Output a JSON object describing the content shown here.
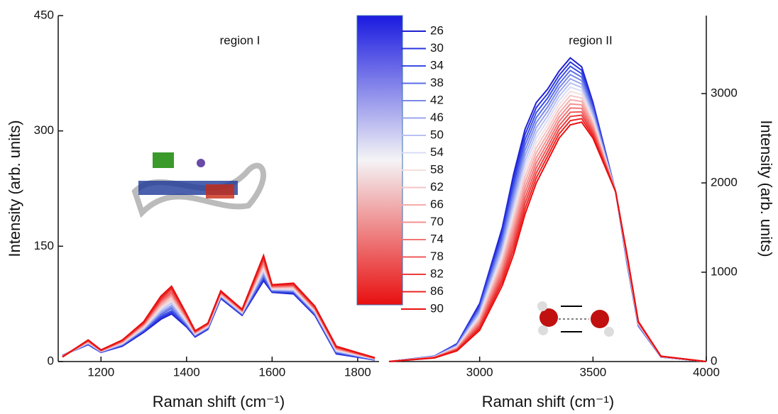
{
  "chart_data": [
    {
      "type": "line",
      "annotation": "region I",
      "x_label": "Raman shift (cm⁻¹)",
      "y_label": "Intensity (arb. units)",
      "xlim": [
        1100,
        1850
      ],
      "xticks": [
        1200,
        1400,
        1600,
        1800
      ],
      "ylim": [
        0,
        450
      ],
      "yticks": [
        0,
        150,
        300,
        450
      ],
      "x": [
        1110,
        1170,
        1200,
        1250,
        1300,
        1340,
        1365,
        1400,
        1420,
        1450,
        1480,
        1530,
        1580,
        1600,
        1650,
        1700,
        1750,
        1840
      ],
      "series": [
        {
          "name": "26",
          "color": "#1f1fd0",
          "values": [
            8,
            22,
            12,
            20,
            38,
            55,
            62,
            45,
            32,
            42,
            82,
            60,
            105,
            90,
            88,
            60,
            10,
            2
          ]
        },
        {
          "name": "30",
          "color": "#2a36e0",
          "values": [
            8,
            22,
            12,
            21,
            39,
            57,
            64,
            46,
            33,
            43,
            83,
            61,
            107,
            91,
            89,
            61,
            11,
            2
          ]
        },
        {
          "name": "34",
          "color": "#3a4ee6",
          "values": [
            8,
            23,
            12,
            21,
            40,
            59,
            66,
            47,
            33,
            43,
            83,
            61,
            109,
            91,
            90,
            62,
            11,
            2
          ]
        },
        {
          "name": "38",
          "color": "#5a6ce8",
          "values": [
            8,
            23,
            13,
            22,
            41,
            61,
            69,
            48,
            34,
            44,
            84,
            62,
            111,
            92,
            91,
            62,
            12,
            3
          ]
        },
        {
          "name": "42",
          "color": "#7a88e8",
          "values": [
            8,
            24,
            13,
            22,
            42,
            63,
            71,
            49,
            34,
            44,
            85,
            62,
            113,
            93,
            92,
            63,
            13,
            3
          ]
        },
        {
          "name": "46",
          "color": "#9aa4ee",
          "values": [
            7,
            24,
            13,
            23,
            42,
            64,
            73,
            50,
            35,
            45,
            85,
            63,
            115,
            93,
            92,
            64,
            13,
            3
          ]
        },
        {
          "name": "50",
          "color": "#b9c0f2",
          "values": [
            7,
            24,
            13,
            23,
            43,
            66,
            76,
            51,
            35,
            45,
            86,
            63,
            117,
            94,
            93,
            65,
            14,
            3
          ]
        },
        {
          "name": "54",
          "color": "#d8dcf5",
          "values": [
            7,
            25,
            13,
            24,
            44,
            68,
            78,
            52,
            36,
            46,
            86,
            64,
            119,
            94,
            94,
            65,
            14,
            3
          ]
        },
        {
          "name": "58",
          "color": "#f5dede",
          "values": [
            7,
            25,
            14,
            24,
            45,
            70,
            80,
            54,
            36,
            46,
            87,
            64,
            122,
            95,
            95,
            66,
            15,
            4
          ]
        },
        {
          "name": "62",
          "color": "#f5c4c4",
          "values": [
            7,
            25,
            14,
            25,
            46,
            72,
            82,
            55,
            37,
            47,
            88,
            65,
            124,
            96,
            96,
            67,
            16,
            4
          ]
        },
        {
          "name": "66",
          "color": "#f5aaaa",
          "values": [
            7,
            26,
            14,
            25,
            47,
            74,
            85,
            56,
            37,
            47,
            88,
            65,
            126,
            96,
            97,
            68,
            16,
            4
          ]
        },
        {
          "name": "70",
          "color": "#f49090",
          "values": [
            7,
            26,
            14,
            26,
            48,
            76,
            87,
            57,
            38,
            48,
            89,
            66,
            128,
            97,
            98,
            68,
            17,
            4
          ]
        },
        {
          "name": "74",
          "color": "#f27474",
          "values": [
            7,
            27,
            14,
            26,
            49,
            78,
            89,
            58,
            38,
            48,
            90,
            66,
            130,
            98,
            99,
            69,
            18,
            4
          ]
        },
        {
          "name": "78",
          "color": "#f05858",
          "values": [
            6,
            27,
            14,
            27,
            49,
            79,
            91,
            59,
            39,
            49,
            90,
            67,
            132,
            98,
            99,
            70,
            18,
            4
          ]
        },
        {
          "name": "82",
          "color": "#ee3c3c",
          "values": [
            6,
            27,
            15,
            27,
            50,
            81,
            94,
            60,
            39,
            49,
            91,
            67,
            134,
            99,
            100,
            71,
            19,
            5
          ]
        },
        {
          "name": "86",
          "color": "#ec2424",
          "values": [
            6,
            28,
            15,
            28,
            51,
            83,
            96,
            61,
            40,
            50,
            91,
            68,
            136,
            99,
            101,
            71,
            19,
            5
          ]
        },
        {
          "name": "90",
          "color": "#e81010",
          "values": [
            6,
            28,
            15,
            28,
            52,
            85,
            98,
            62,
            40,
            50,
            92,
            68,
            138,
            100,
            102,
            72,
            20,
            5
          ]
        }
      ]
    },
    {
      "type": "line",
      "annotation": "region II",
      "x_label": "Raman shift (cm⁻¹)",
      "y2_label": "Intensity (arb. units)",
      "xlim": [
        2600,
        4000
      ],
      "xticks": [
        3000,
        3500,
        4000
      ],
      "y2lim": [
        0,
        3873
      ],
      "y2ticks": [
        0,
        1000,
        2000,
        3000
      ],
      "x": [
        2600,
        2800,
        2900,
        3000,
        3100,
        3150,
        3200,
        3250,
        3300,
        3350,
        3400,
        3450,
        3500,
        3600,
        3650,
        3700,
        3800,
        4000
      ],
      "series": [
        {
          "axis": "y2",
          "values": [
            0,
            60,
            200,
            650,
            1500,
            2100,
            2600,
            2900,
            3050,
            3250,
            3400,
            3300,
            2900,
            1900,
            1100,
            400,
            50,
            0
          ]
        },
        {
          "axis": "y2",
          "values": [
            0,
            59,
            195,
            631,
            1459,
            2044,
            2541,
            2844,
            3000,
            3203,
            3353,
            3261,
            2875,
            1900,
            1106,
            403,
            51,
            0
          ]
        },
        {
          "axis": "y2",
          "values": [
            0,
            58,
            190,
            613,
            1419,
            1988,
            2481,
            2788,
            2950,
            3156,
            3306,
            3223,
            2850,
            1900,
            1113,
            406,
            51,
            0
          ]
        },
        {
          "axis": "y2",
          "values": [
            0,
            56,
            185,
            594,
            1378,
            1931,
            2422,
            2731,
            2900,
            3109,
            3259,
            3184,
            2825,
            1900,
            1119,
            409,
            52,
            0
          ]
        },
        {
          "axis": "y2",
          "values": [
            0,
            55,
            180,
            575,
            1338,
            1875,
            2363,
            2675,
            2850,
            3063,
            3213,
            3145,
            2800,
            1900,
            1125,
            413,
            53,
            0
          ]
        },
        {
          "axis": "y2",
          "values": [
            0,
            54,
            175,
            556,
            1297,
            1819,
            2303,
            2619,
            2800,
            3016,
            3166,
            3106,
            2775,
            1900,
            1131,
            416,
            53,
            0
          ]
        },
        {
          "axis": "y2",
          "values": [
            0,
            53,
            170,
            538,
            1256,
            1763,
            2244,
            2563,
            2750,
            2969,
            3119,
            3068,
            2750,
            1900,
            1138,
            419,
            54,
            0
          ]
        },
        {
          "axis": "y2",
          "values": [
            0,
            51,
            165,
            519,
            1216,
            1706,
            2184,
            2506,
            2700,
            2922,
            3072,
            3029,
            2725,
            1900,
            1144,
            422,
            54,
            0
          ]
        },
        {
          "axis": "y2",
          "values": [
            0,
            50,
            160,
            500,
            1175,
            1650,
            2125,
            2450,
            2650,
            2875,
            3025,
            2990,
            2700,
            1900,
            1150,
            425,
            55,
            0
          ]
        },
        {
          "axis": "y2",
          "values": [
            0,
            49,
            155,
            481,
            1134,
            1594,
            2066,
            2394,
            2600,
            2828,
            2978,
            2951,
            2675,
            1900,
            1156,
            428,
            56,
            0
          ]
        },
        {
          "axis": "y2",
          "values": [
            0,
            48,
            150,
            463,
            1094,
            1538,
            2006,
            2338,
            2550,
            2781,
            2931,
            2913,
            2650,
            1900,
            1163,
            431,
            56,
            0
          ]
        },
        {
          "axis": "y2",
          "values": [
            0,
            46,
            145,
            444,
            1053,
            1481,
            1947,
            2281,
            2500,
            2734,
            2884,
            2874,
            2625,
            1900,
            1169,
            434,
            57,
            0
          ]
        },
        {
          "axis": "y2",
          "values": [
            0,
            45,
            140,
            425,
            1013,
            1425,
            1888,
            2225,
            2450,
            2688,
            2838,
            2835,
            2600,
            1900,
            1175,
            438,
            58,
            0
          ]
        },
        {
          "axis": "y2",
          "values": [
            0,
            44,
            135,
            406,
            972,
            1369,
            1828,
            2169,
            2400,
            2641,
            2791,
            2796,
            2575,
            1900,
            1181,
            441,
            58,
            0
          ]
        },
        {
          "axis": "y2",
          "values": [
            0,
            43,
            130,
            388,
            931,
            1313,
            1769,
            2113,
            2350,
            2594,
            2744,
            2758,
            2550,
            1900,
            1188,
            444,
            59,
            0
          ]
        },
        {
          "axis": "y2",
          "values": [
            0,
            41,
            125,
            369,
            891,
            1256,
            1709,
            2056,
            2300,
            2547,
            2697,
            2719,
            2525,
            1900,
            1194,
            447,
            59,
            0
          ]
        },
        {
          "axis": "y2",
          "values": [
            0,
            40,
            120,
            350,
            850,
            1200,
            1650,
            2000,
            2250,
            2500,
            2650,
            2680,
            2500,
            1900,
            1200,
            450,
            60,
            0
          ]
        }
      ]
    }
  ]
}
